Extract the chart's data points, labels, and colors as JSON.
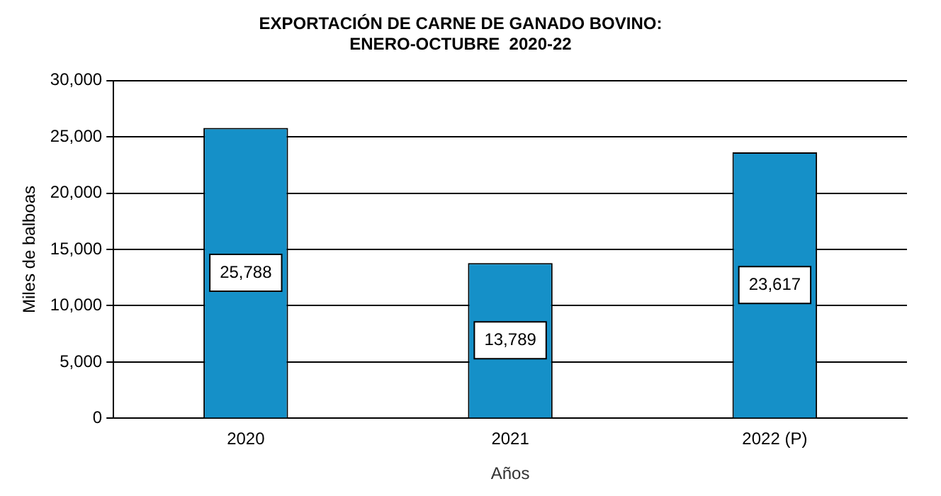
{
  "chart_data": {
    "type": "bar",
    "title": "EXPORTACIÓN DE CARNE DE GANADO BOVINO:\nENERO-OCTUBRE  2020-22",
    "xlabel": "Años",
    "ylabel": "Miles de balboas",
    "categories": [
      "2020",
      "2021",
      "2022 (P)"
    ],
    "values": [
      25788,
      13789,
      23617
    ],
    "color": "#1590c8",
    "value_labels": [
      "25,788",
      "13,789",
      "23,617"
    ],
    "ylim": [
      0,
      30000
    ],
    "yticks": [
      {
        "value": 0,
        "label": "0"
      },
      {
        "value": 5000,
        "label": "5,000"
      },
      {
        "value": 10000,
        "label": "10,000"
      },
      {
        "value": 15000,
        "label": "15,000"
      },
      {
        "value": 20000,
        "label": "20,000"
      },
      {
        "value": 25000,
        "label": "25,000"
      },
      {
        "value": 30000,
        "label": "30,000"
      }
    ],
    "grid": "y",
    "legend": false
  }
}
